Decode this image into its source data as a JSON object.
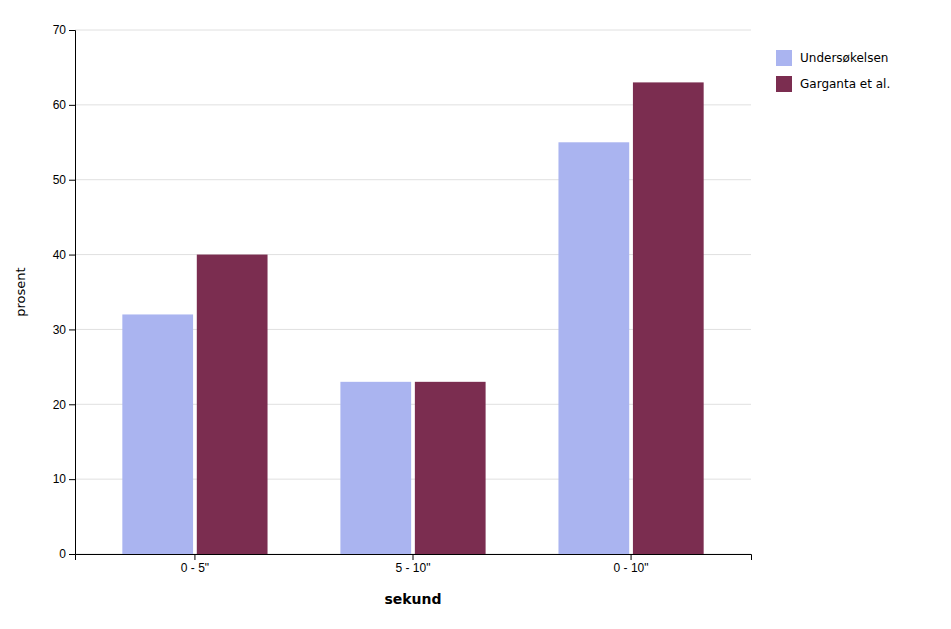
{
  "chart_data": {
    "type": "bar",
    "categories": [
      "0 - 5\"",
      "5 - 10\"",
      "0 - 10\""
    ],
    "series": [
      {
        "name": "Undersøkelsen",
        "values": [
          32,
          23,
          55
        ],
        "color": "#aab4f0"
      },
      {
        "name": "Garganta et al.",
        "values": [
          40,
          23,
          63
        ],
        "color": "#7b2d50"
      }
    ],
    "xlabel": "sekund",
    "ylabel": "prosent",
    "ylim": [
      0,
      70
    ],
    "yticks": [
      0,
      10,
      20,
      30,
      40,
      50,
      60,
      70
    ],
    "grid": true,
    "legend": "right"
  }
}
